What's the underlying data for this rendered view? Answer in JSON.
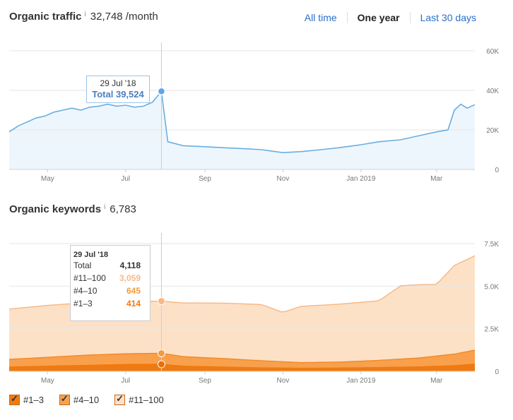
{
  "traffic": {
    "title": "Organic traffic",
    "info": "i",
    "value": "32,748 /month",
    "range_tabs": [
      "All time",
      "One year",
      "Last 30 days"
    ],
    "active_tab": "One year",
    "tooltip": {
      "date": "29 Jul '18",
      "label": "Total 39,524"
    }
  },
  "keywords": {
    "title": "Organic keywords",
    "info": "i",
    "value": "6,783",
    "tooltip": {
      "date": "29 Jul '18",
      "rows": [
        {
          "label": "Total",
          "value": "4,118"
        },
        {
          "label": "#11–100",
          "value": "3,059"
        },
        {
          "label": "#4–10",
          "value": "645"
        },
        {
          "label": "#1–3",
          "value": "414"
        }
      ]
    },
    "legend": [
      "#1–3",
      "#4–10",
      "#11–100"
    ]
  },
  "colors": {
    "traffic_line": "#6aaee0",
    "traffic_fill": "#eef6fd",
    "kw_11_100": "#fde1c7",
    "kw_11_100_line": "#f7b987",
    "kw_4_10": "#f9a04c",
    "kw_1_3": "#f07a10",
    "link": "#2a6fc9"
  },
  "chart_data": [
    {
      "type": "area",
      "title": "Organic traffic",
      "x_ticks": [
        "May",
        "Jul",
        "Sep",
        "Nov",
        "Jan 2019",
        "Mar"
      ],
      "y_ticks": [
        "60K",
        "40K",
        "20K",
        "0"
      ],
      "ylim": [
        0,
        60000
      ],
      "grid": true,
      "series": [
        {
          "values": [
            {
              "x": "2018-04-01",
              "y": 19000
            },
            {
              "x": "2018-04-08",
              "y": 22000
            },
            {
              "x": "2018-04-15",
              "y": 24000
            },
            {
              "x": "2018-04-22",
              "y": 26000
            },
            {
              "x": "2018-04-29",
              "y": 27000
            },
            {
              "x": "2018-05-06",
              "y": 29000
            },
            {
              "x": "2018-05-13",
              "y": 30000
            },
            {
              "x": "2018-05-20",
              "y": 31000
            },
            {
              "x": "2018-05-27",
              "y": 30000
            },
            {
              "x": "2018-06-03",
              "y": 31500
            },
            {
              "x": "2018-06-10",
              "y": 32000
            },
            {
              "x": "2018-06-17",
              "y": 33000
            },
            {
              "x": "2018-06-24",
              "y": 32000
            },
            {
              "x": "2018-07-01",
              "y": 32500
            },
            {
              "x": "2018-07-08",
              "y": 31500
            },
            {
              "x": "2018-07-15",
              "y": 32000
            },
            {
              "x": "2018-07-22",
              "y": 34000
            },
            {
              "x": "2018-07-29",
              "y": 39524
            },
            {
              "x": "2018-08-03",
              "y": 14000
            },
            {
              "x": "2018-08-15",
              "y": 12000
            },
            {
              "x": "2018-09-01",
              "y": 11500
            },
            {
              "x": "2018-09-15",
              "y": 11000
            },
            {
              "x": "2018-10-01",
              "y": 10500
            },
            {
              "x": "2018-10-15",
              "y": 10000
            },
            {
              "x": "2018-11-01",
              "y": 8500
            },
            {
              "x": "2018-11-15",
              "y": 9000
            },
            {
              "x": "2018-12-01",
              "y": 10000
            },
            {
              "x": "2018-12-15",
              "y": 11000
            },
            {
              "x": "2019-01-01",
              "y": 12500
            },
            {
              "x": "2019-01-15",
              "y": 14000
            },
            {
              "x": "2019-02-01",
              "y": 15000
            },
            {
              "x": "2019-02-15",
              "y": 17000
            },
            {
              "x": "2019-03-01",
              "y": 19000
            },
            {
              "x": "2019-03-10",
              "y": 20000
            },
            {
              "x": "2019-03-15",
              "y": 30000
            },
            {
              "x": "2019-03-20",
              "y": 33000
            },
            {
              "x": "2019-03-25",
              "y": 31000
            },
            {
              "x": "2019-03-31",
              "y": 32748
            }
          ]
        }
      ]
    },
    {
      "type": "area",
      "title": "Organic keywords",
      "x_ticks": [
        "May",
        "Jul",
        "Sep",
        "Nov",
        "Jan 2019",
        "Mar"
      ],
      "y_ticks": [
        "7.5K",
        "5.0K",
        "2.5K",
        "0"
      ],
      "ylim": [
        0,
        7500
      ],
      "grid": true,
      "stacked": true,
      "series": [
        {
          "name": "#1–3",
          "values": [
            {
              "x": "2018-04-01",
              "y": 250
            },
            {
              "x": "2018-05-01",
              "y": 300
            },
            {
              "x": "2018-06-01",
              "y": 350
            },
            {
              "x": "2018-07-01",
              "y": 400
            },
            {
              "x": "2018-07-29",
              "y": 414
            },
            {
              "x": "2018-08-15",
              "y": 300
            },
            {
              "x": "2018-09-15",
              "y": 250
            },
            {
              "x": "2018-10-15",
              "y": 200
            },
            {
              "x": "2018-11-15",
              "y": 180
            },
            {
              "x": "2018-12-15",
              "y": 190
            },
            {
              "x": "2019-01-15",
              "y": 220
            },
            {
              "x": "2019-02-15",
              "y": 260
            },
            {
              "x": "2019-03-15",
              "y": 330
            },
            {
              "x": "2019-03-31",
              "y": 420
            }
          ]
        },
        {
          "name": "#4–10",
          "values": [
            {
              "x": "2018-04-01",
              "y": 450
            },
            {
              "x": "2018-05-01",
              "y": 520
            },
            {
              "x": "2018-06-01",
              "y": 600
            },
            {
              "x": "2018-07-01",
              "y": 630
            },
            {
              "x": "2018-07-29",
              "y": 645
            },
            {
              "x": "2018-08-15",
              "y": 560
            },
            {
              "x": "2018-09-15",
              "y": 500
            },
            {
              "x": "2018-10-15",
              "y": 420
            },
            {
              "x": "2018-11-15",
              "y": 330
            },
            {
              "x": "2018-12-15",
              "y": 350
            },
            {
              "x": "2019-01-15",
              "y": 420
            },
            {
              "x": "2019-02-15",
              "y": 520
            },
            {
              "x": "2019-03-15",
              "y": 680
            },
            {
              "x": "2019-03-31",
              "y": 820
            }
          ]
        },
        {
          "name": "#11–100",
          "values": [
            {
              "x": "2018-04-01",
              "y": 2950
            },
            {
              "x": "2018-05-01",
              "y": 3050
            },
            {
              "x": "2018-06-01",
              "y": 3080
            },
            {
              "x": "2018-07-01",
              "y": 3060
            },
            {
              "x": "2018-07-29",
              "y": 3059
            },
            {
              "x": "2018-08-15",
              "y": 3150
            },
            {
              "x": "2018-09-15",
              "y": 3250
            },
            {
              "x": "2018-10-15",
              "y": 3300
            },
            {
              "x": "2018-11-01",
              "y": 2900
            },
            {
              "x": "2018-11-15",
              "y": 3300
            },
            {
              "x": "2018-12-15",
              "y": 3400
            },
            {
              "x": "2019-01-15",
              "y": 3500
            },
            {
              "x": "2019-02-01",
              "y": 4300
            },
            {
              "x": "2019-02-15",
              "y": 4300
            },
            {
              "x": "2019-03-01",
              "y": 4200
            },
            {
              "x": "2019-03-15",
              "y": 5200
            },
            {
              "x": "2019-03-31",
              "y": 5543
            }
          ]
        }
      ]
    }
  ]
}
